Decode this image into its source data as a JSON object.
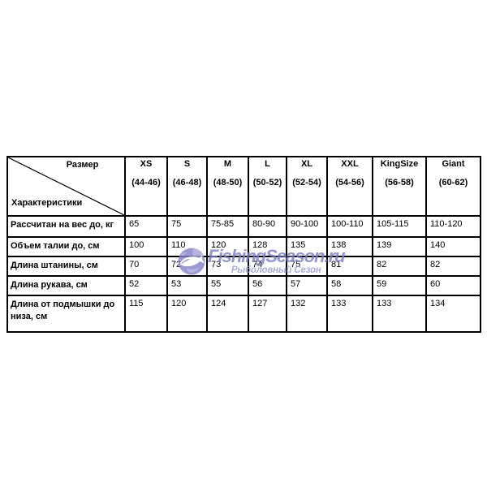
{
  "watermark": {
    "brand": "FishingSeason.ru",
    "subtitle": "Рыболовный Сезон",
    "brand_color": "#7b7bc5",
    "subtitle_color": "#9a9ad5",
    "globe_color": "#8181c5",
    "globe_land_color": "#a3a3d8",
    "globe_fish_color": "#ffffff"
  },
  "table": {
    "border_color": "#000000",
    "corner": {
      "top_label": "Размер",
      "bottom_label": "Характеристики"
    },
    "columns": [
      {
        "size": "XS",
        "range": "(44-46)"
      },
      {
        "size": "S",
        "range": "(46-48)"
      },
      {
        "size": "M",
        "range": "(48-50)"
      },
      {
        "size": "L",
        "range": "(50-52)"
      },
      {
        "size": "XL",
        "range": "(52-54)"
      },
      {
        "size": "XXL",
        "range": "(54-56)"
      },
      {
        "size": "KingSize",
        "range": "(56-58)"
      },
      {
        "size": "Giant",
        "range": "(60-62)"
      }
    ],
    "rows": [
      {
        "label": "Рассчитан на вес до, кг",
        "values": [
          "65",
          "75",
          "75-85",
          "80-90",
          "90-100",
          "100-110",
          "105-115",
          "110-120"
        ]
      },
      {
        "label": "Объем талии до, см",
        "values": [
          "100",
          "110",
          "120",
          "128",
          "135",
          "138",
          "139",
          "140"
        ]
      },
      {
        "label": "Длина штанины, см",
        "values": [
          "70",
          "72",
          "73",
          "74",
          "75",
          "81",
          "82",
          "82"
        ]
      },
      {
        "label": "Длина рукава, см",
        "values": [
          "52",
          "53",
          "55",
          "56",
          "57",
          "58",
          "59",
          "60"
        ]
      },
      {
        "label": "Длина от подмышки до низа, см",
        "values": [
          "115",
          "120",
          "124",
          "127",
          "132",
          "133",
          "133",
          "134"
        ]
      }
    ]
  },
  "chart_data": {
    "type": "table",
    "title": "",
    "row_header": "Характеристики",
    "column_header": "Размер",
    "categories": [
      "XS (44-46)",
      "S (46-48)",
      "M (48-50)",
      "L (50-52)",
      "XL (52-54)",
      "XXL (54-56)",
      "KingSize (56-58)",
      "Giant (60-62)"
    ],
    "series": [
      {
        "name": "Рассчитан на вес до, кг",
        "values": [
          "65",
          "75",
          "75-85",
          "80-90",
          "90-100",
          "100-110",
          "105-115",
          "110-120"
        ]
      },
      {
        "name": "Объем талии до, см",
        "values": [
          100,
          110,
          120,
          128,
          135,
          138,
          139,
          140
        ]
      },
      {
        "name": "Длина штанины, см",
        "values": [
          70,
          72,
          73,
          74,
          75,
          81,
          82,
          82
        ]
      },
      {
        "name": "Длина рукава, см",
        "values": [
          52,
          53,
          55,
          56,
          57,
          58,
          59,
          60
        ]
      },
      {
        "name": "Длина от подмышки до низа, см",
        "values": [
          115,
          120,
          124,
          127,
          132,
          133,
          133,
          134
        ]
      }
    ]
  }
}
